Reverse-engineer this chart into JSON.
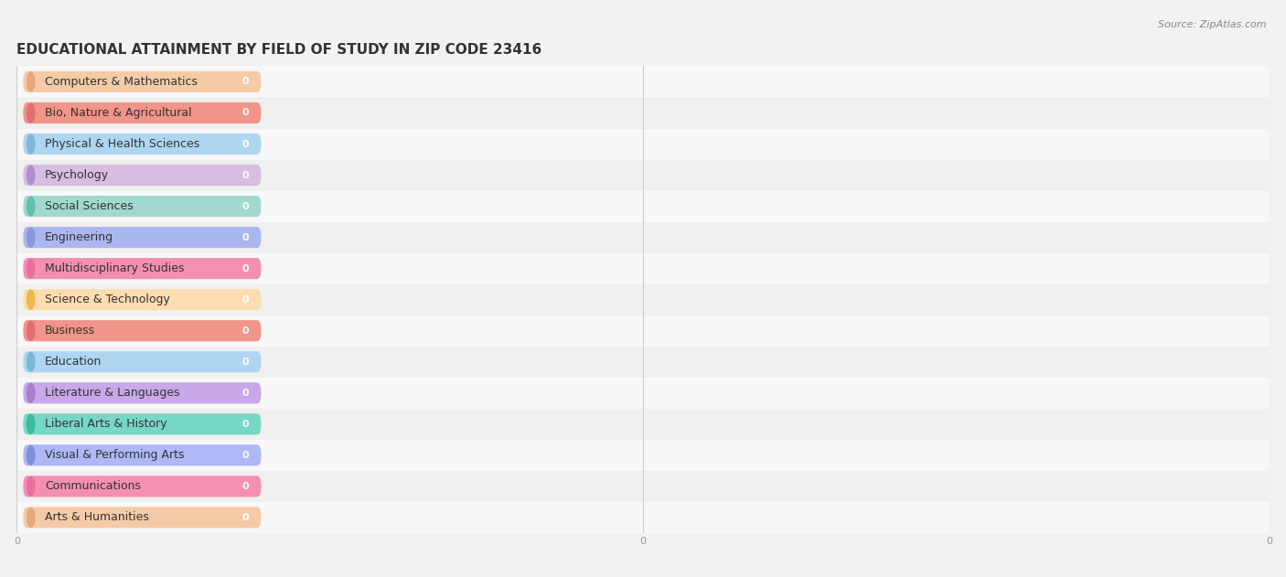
{
  "title": "EDUCATIONAL ATTAINMENT BY FIELD OF STUDY IN ZIP CODE 23416",
  "source": "Source: ZipAtlas.com",
  "categories": [
    "Computers & Mathematics",
    "Bio, Nature & Agricultural",
    "Physical & Health Sciences",
    "Psychology",
    "Social Sciences",
    "Engineering",
    "Multidisciplinary Studies",
    "Science & Technology",
    "Business",
    "Education",
    "Literature & Languages",
    "Liberal Arts & History",
    "Visual & Performing Arts",
    "Communications",
    "Arts & Humanities"
  ],
  "values": [
    0,
    0,
    0,
    0,
    0,
    0,
    0,
    0,
    0,
    0,
    0,
    0,
    0,
    0,
    0
  ],
  "bar_colors": [
    "#F5CBA7",
    "#F1948A",
    "#AED6F1",
    "#D7BDE2",
    "#A2D9CE",
    "#AAB7EF",
    "#F48FB1",
    "#FDDCB0",
    "#F1948A",
    "#AED6F1",
    "#C8A8E9",
    "#76D7C4",
    "#ADB8F5",
    "#F48FB1",
    "#F5CBA7"
  ],
  "dot_colors": [
    "#E8A87C",
    "#E07070",
    "#7BB8D8",
    "#B090CC",
    "#60C0B0",
    "#8898D8",
    "#E870A0",
    "#F0B850",
    "#E07070",
    "#7BB8D8",
    "#A880CC",
    "#40B8A0",
    "#8090D8",
    "#E870A0",
    "#E8A87C"
  ],
  "background_color": "#f2f2f2",
  "bar_bg_color": "#e8e8e8",
  "row_bg_even": "#f8f8f8",
  "row_bg_odd": "#f0f0f0",
  "title_fontsize": 11,
  "label_fontsize": 9,
  "value_fontsize": 8,
  "figsize": [
    14.06,
    6.31
  ]
}
